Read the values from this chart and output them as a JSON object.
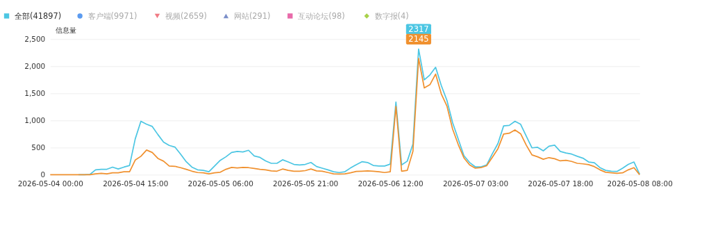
{
  "chart_data": {
    "type": "line",
    "ylabel": "信息量",
    "x": [
      "2026-05-04T00:00",
      "2026-05-04T01:00",
      "2026-05-04T02:00",
      "2026-05-04T03:00",
      "2026-05-04T04:00",
      "2026-05-04T05:00",
      "2026-05-04T06:00",
      "2026-05-04T07:00",
      "2026-05-04T08:00",
      "2026-05-04T09:00",
      "2026-05-04T10:00",
      "2026-05-04T11:00",
      "2026-05-04T12:00",
      "2026-05-04T13:00",
      "2026-05-04T14:00",
      "2026-05-04T15:00",
      "2026-05-04T16:00",
      "2026-05-04T17:00",
      "2026-05-04T18:00",
      "2026-05-04T19:00",
      "2026-05-04T20:00",
      "2026-05-04T21:00",
      "2026-05-04T22:00",
      "2026-05-04T23:00",
      "2026-05-05T00:00",
      "2026-05-05T01:00",
      "2026-05-05T02:00",
      "2026-05-05T03:00",
      "2026-05-05T04:00",
      "2026-05-05T05:00",
      "2026-05-05T06:00",
      "2026-05-05T07:00",
      "2026-05-05T08:00",
      "2026-05-05T09:00",
      "2026-05-05T10:00",
      "2026-05-05T11:00",
      "2026-05-05T12:00",
      "2026-05-05T13:00",
      "2026-05-05T14:00",
      "2026-05-05T15:00",
      "2026-05-05T16:00",
      "2026-05-05T17:00",
      "2026-05-05T18:00",
      "2026-05-05T19:00",
      "2026-05-05T20:00",
      "2026-05-05T21:00",
      "2026-05-05T22:00",
      "2026-05-05T23:00",
      "2026-05-06T00:00",
      "2026-05-06T01:00",
      "2026-05-06T02:00",
      "2026-05-06T03:00",
      "2026-05-06T04:00",
      "2026-05-06T05:00",
      "2026-05-06T06:00",
      "2026-05-06T07:00",
      "2026-05-06T08:00",
      "2026-05-06T09:00",
      "2026-05-06T10:00",
      "2026-05-06T11:00",
      "2026-05-06T12:00",
      "2026-05-06T13:00",
      "2026-05-06T14:00",
      "2026-05-06T15:00",
      "2026-05-06T16:00",
      "2026-05-06T17:00",
      "2026-05-06T18:00",
      "2026-05-06T19:00",
      "2026-05-06T20:00",
      "2026-05-06T21:00",
      "2026-05-06T22:00",
      "2026-05-06T23:00",
      "2026-05-07T00:00",
      "2026-05-07T01:00",
      "2026-05-07T02:00",
      "2026-05-07T03:00",
      "2026-05-07T04:00",
      "2026-05-07T05:00",
      "2026-05-07T06:00",
      "2026-05-07T07:00",
      "2026-05-07T08:00",
      "2026-05-07T09:00",
      "2026-05-07T10:00",
      "2026-05-07T11:00",
      "2026-05-07T12:00",
      "2026-05-07T13:00",
      "2026-05-07T14:00",
      "2026-05-07T15:00",
      "2026-05-07T16:00",
      "2026-05-07T17:00",
      "2026-05-07T18:00",
      "2026-05-07T19:00",
      "2026-05-07T20:00",
      "2026-05-07T21:00",
      "2026-05-07T22:00",
      "2026-05-07T23:00",
      "2026-05-08T00:00",
      "2026-05-08T01:00",
      "2026-05-08T02:00",
      "2026-05-08T03:00",
      "2026-05-08T04:00",
      "2026-05-08T05:00",
      "2026-05-08T06:00",
      "2026-05-08T07:00",
      "2026-05-08T08:00"
    ],
    "series": [
      {
        "name": "全部(41897)",
        "color": "#4cc6e3",
        "values": [
          null,
          null,
          null,
          null,
          null,
          0,
          0,
          5,
          90,
          100,
          100,
          140,
          105,
          140,
          170,
          660,
          985,
          930,
          890,
          740,
          600,
          540,
          510,
          380,
          240,
          140,
          90,
          80,
          55,
          160,
          265,
          330,
          410,
          430,
          420,
          450,
          345,
          320,
          255,
          210,
          210,
          275,
          235,
          190,
          180,
          190,
          225,
          150,
          120,
          90,
          55,
          40,
          55,
          125,
          185,
          240,
          225,
          170,
          160,
          160,
          195,
          1340,
          180,
          250,
          565,
          2317,
          1750,
          1840,
          1980,
          1645,
          1370,
          960,
          655,
          350,
          225,
          145,
          145,
          180,
          385,
          575,
          900,
          910,
          985,
          930,
          710,
          495,
          505,
          440,
          525,
          545,
          430,
          400,
          380,
          340,
          305,
          235,
          220,
          130,
          80,
          65,
          60,
          120,
          190,
          235,
          10
        ]
      },
      {
        "color": "#f0912f",
        "values": [
          0,
          0,
          0,
          0,
          0,
          0,
          0,
          0,
          15,
          25,
          15,
          35,
          35,
          55,
          55,
          270,
          340,
          455,
          410,
          300,
          250,
          160,
          155,
          130,
          100,
          65,
          40,
          35,
          15,
          35,
          45,
          100,
          135,
          125,
          135,
          130,
          115,
          100,
          90,
          70,
          65,
          105,
          80,
          65,
          65,
          75,
          105,
          70,
          65,
          40,
          15,
          12,
          15,
          35,
          60,
          65,
          70,
          65,
          55,
          40,
          55,
          1260,
          65,
          80,
          430,
          2145,
          1600,
          1660,
          1855,
          1490,
          1265,
          840,
          555,
          310,
          180,
          120,
          130,
          165,
          320,
          480,
          750,
          765,
          825,
          755,
          545,
          365,
          330,
          285,
          315,
          295,
          255,
          265,
          245,
          210,
          200,
          185,
          150,
          90,
          45,
          35,
          25,
          35,
          90,
          130,
          0
        ]
      },
      {
        "name": "客户端(9971)",
        "color": "#5b9bf0",
        "values": [
          null,
          null,
          null,
          null,
          null,
          null,
          null,
          null,
          null,
          null,
          null,
          null,
          null,
          null,
          null,
          null,
          null,
          null,
          null,
          null,
          null,
          null,
          null,
          null,
          null,
          null,
          null,
          null,
          null,
          null,
          null,
          null,
          null,
          null,
          null,
          null,
          null,
          null,
          null,
          null,
          null,
          null,
          null,
          null,
          null,
          null,
          null,
          null,
          null,
          null,
          null,
          null,
          null,
          null,
          null,
          null,
          null,
          null,
          null,
          null,
          null,
          null,
          null,
          null,
          null,
          null,
          null,
          null,
          null,
          null,
          null,
          null,
          null,
          null,
          null,
          null,
          null,
          null,
          null,
          null,
          null,
          null,
          null,
          null,
          null,
          null,
          null,
          null,
          null,
          null,
          null,
          null,
          null,
          null,
          null,
          null,
          null,
          null,
          null,
          null,
          null,
          null,
          null,
          null,
          null
        ]
      },
      {
        "name": "视频(2659)",
        "color": "#f07b85",
        "values": [
          null,
          null,
          null,
          null,
          null,
          null,
          null,
          null,
          null,
          null,
          null,
          null,
          null,
          null,
          null,
          null,
          null,
          null,
          null,
          null,
          null,
          null,
          null,
          null,
          null,
          null,
          null,
          null,
          null,
          null,
          null,
          null,
          null,
          null,
          null,
          null,
          null,
          null,
          null,
          null,
          null,
          null,
          null,
          null,
          null,
          null,
          null,
          null,
          null,
          null,
          null,
          null,
          null,
          null,
          null,
          null,
          null,
          null,
          null,
          null,
          null,
          null,
          null,
          null,
          null,
          null,
          null,
          null,
          null,
          null,
          null,
          null,
          null,
          null,
          null,
          null,
          null,
          null,
          null,
          null,
          null,
          null,
          null,
          null,
          null,
          null,
          null,
          null,
          null,
          null,
          null,
          null,
          null,
          null,
          null,
          null,
          null,
          null,
          null,
          null,
          null,
          null,
          null,
          null,
          null
        ]
      },
      {
        "name": "网站(291)",
        "color": "#7b8fc9",
        "values": [
          null,
          null,
          null,
          null,
          null,
          null,
          null,
          null,
          null,
          null,
          null,
          null,
          null,
          null,
          null,
          null,
          null,
          null,
          null,
          null,
          null,
          null,
          null,
          null,
          null,
          null,
          null,
          null,
          null,
          null,
          null,
          null,
          null,
          null,
          null,
          null,
          null,
          null,
          null,
          null,
          null,
          null,
          null,
          null,
          null,
          null,
          null,
          null,
          null,
          null,
          null,
          null,
          null,
          null,
          null,
          null,
          null,
          null,
          null,
          null,
          null,
          null,
          null,
          null,
          null,
          null,
          null,
          null,
          null,
          null,
          null,
          null,
          null,
          null,
          null,
          null,
          null,
          null,
          null,
          null,
          null,
          null,
          null,
          null,
          null,
          null,
          null,
          null,
          null,
          null,
          null,
          null,
          null,
          null,
          null,
          null,
          null,
          null,
          null,
          null,
          null,
          null,
          null,
          null,
          null
        ]
      },
      {
        "name": "互动论坛(98)",
        "color": "#e86aaa",
        "values": [
          null,
          null,
          null,
          null,
          null,
          null,
          null,
          null,
          null,
          null,
          null,
          null,
          null,
          null,
          null,
          null,
          null,
          null,
          null,
          null,
          null,
          null,
          null,
          null,
          null,
          null,
          null,
          null,
          null,
          null,
          null,
          null,
          null,
          null,
          null,
          null,
          null,
          null,
          null,
          null,
          null,
          null,
          null,
          null,
          null,
          null,
          null,
          null,
          null,
          null,
          null,
          null,
          null,
          null,
          null,
          null,
          null,
          null,
          null,
          null,
          null,
          null,
          null,
          null,
          null,
          null,
          null,
          null,
          null,
          null,
          null,
          null,
          null,
          null,
          null,
          null,
          null,
          null,
          null,
          null,
          null,
          null,
          null,
          null,
          null,
          null,
          null,
          null,
          null,
          null,
          null,
          null,
          null,
          null,
          null,
          null,
          null,
          null,
          null,
          null,
          null,
          null,
          null,
          null,
          null
        ]
      },
      {
        "name": "数字报(4)",
        "color": "#a8d14a",
        "values": [
          null,
          null,
          null,
          null,
          null,
          null,
          null,
          null,
          null,
          null,
          null,
          null,
          null,
          null,
          null,
          null,
          null,
          null,
          null,
          null,
          null,
          null,
          null,
          null,
          null,
          null,
          null,
          null,
          null,
          null,
          null,
          null,
          null,
          null,
          null,
          null,
          null,
          null,
          null,
          null,
          null,
          null,
          null,
          null,
          null,
          null,
          null,
          null,
          null,
          null,
          null,
          null,
          null,
          null,
          null,
          null,
          null,
          null,
          null,
          null,
          null,
          null,
          null,
          null,
          null,
          null,
          null,
          null,
          null,
          null,
          null,
          null,
          null,
          null,
          null,
          null,
          null,
          null,
          null,
          null,
          null,
          null,
          null,
          null,
          null,
          null,
          null,
          null,
          null,
          null,
          null,
          null,
          null,
          null,
          null,
          null,
          null,
          null,
          null,
          null,
          null,
          null,
          null,
          null,
          null
        ]
      }
    ],
    "xlim": [
      "2026-05-04T00:00",
      "2026-05-08T08:00"
    ],
    "xticks": [
      {
        "value": "2026-05-04T00:00",
        "label": "2026-05-04 00:00"
      },
      {
        "value": "2026-05-04T15:00",
        "label": "2026-05-04 15:00"
      },
      {
        "value": "2026-05-05T06:00",
        "label": "2026-05-05 06:00"
      },
      {
        "value": "2026-05-05T21:00",
        "label": "2026-05-05 21:00"
      },
      {
        "value": "2026-05-06T12:00",
        "label": "2026-05-06 12:00"
      },
      {
        "value": "2026-05-07T03:00",
        "label": "2026-05-07 03:00"
      },
      {
        "value": "2026-05-07T18:00",
        "label": "2026-05-07 18:00"
      },
      {
        "value": "2026-05-08T08:00",
        "label": "2026-05-08 08:00"
      }
    ],
    "ylim": [
      0,
      2500
    ],
    "yticks": [
      0,
      500,
      {
        "value": 1000,
        "label": "1,000"
      },
      {
        "value": 1500,
        "label": "1,500"
      },
      {
        "value": 2000,
        "label": "2,000"
      },
      {
        "value": 2500,
        "label": "2,500"
      }
    ],
    "grid": "y",
    "legend": "top left",
    "line_style": "solid",
    "annotations": [
      {
        "text": "2317",
        "x": "2026-05-06T17:00",
        "y": 2317
      },
      {
        "text": "2145",
        "x": "2026-05-06T17:00",
        "y": 2145
      }
    ]
  }
}
